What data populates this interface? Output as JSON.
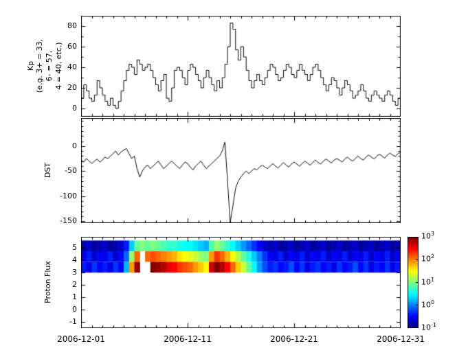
{
  "axis": {
    "x_tick_labels": [
      "2006-12-01",
      "2006-12-11",
      "2006-12-21",
      "2006-12-31"
    ],
    "x_tick_days": [
      1,
      11,
      21,
      31
    ],
    "xlim_days": [
      1,
      31
    ]
  },
  "colorbar": {
    "tick_labels": [
      {
        "base": "10",
        "exp": "3"
      },
      {
        "base": "10",
        "exp": "2"
      },
      {
        "base": "10",
        "exp": "1"
      },
      {
        "base": "10",
        "exp": "0"
      },
      {
        "base": "10",
        "exp": "-1"
      }
    ]
  },
  "chart_data": [
    {
      "type": "line",
      "style": "step",
      "ylabel": "Kp\n(e.g. 3+ = 33,\n6- = 57,\n4 = 40, etc.)",
      "ylim": [
        -8,
        90
      ],
      "yticks": [
        0,
        20,
        40,
        60,
        80
      ],
      "yminor": 10,
      "x_start_day": 1,
      "x_step_days": 0.25,
      "values": [
        10,
        23,
        17,
        10,
        7,
        13,
        27,
        20,
        13,
        7,
        3,
        10,
        3,
        0,
        7,
        17,
        27,
        37,
        43,
        40,
        33,
        47,
        43,
        37,
        40,
        43,
        37,
        30,
        23,
        17,
        27,
        33,
        10,
        7,
        20,
        37,
        40,
        37,
        30,
        23,
        37,
        43,
        40,
        33,
        27,
        20,
        30,
        37,
        30,
        23,
        17,
        27,
        20,
        30,
        43,
        60,
        83,
        77,
        57,
        47,
        60,
        50,
        37,
        27,
        20,
        27,
        33,
        27,
        23,
        30,
        37,
        43,
        40,
        33,
        27,
        30,
        37,
        43,
        40,
        33,
        30,
        37,
        43,
        37,
        33,
        27,
        33,
        40,
        43,
        37,
        30,
        23,
        17,
        23,
        30,
        27,
        20,
        13,
        20,
        27,
        23,
        17,
        10,
        13,
        17,
        23,
        17,
        10,
        7,
        13,
        17,
        13,
        10,
        7,
        13,
        17,
        13,
        7,
        3,
        10,
        13,
        17,
        10,
        7
      ]
    },
    {
      "type": "line",
      "style": "line",
      "ylabel": "DST",
      "ylim": [
        -154,
        56
      ],
      "yticks": [
        0,
        -50,
        -100,
        -150
      ],
      "yminor": 10,
      "x_start_day": 1,
      "x_step_days": 0.25,
      "values": [
        -28,
        -32,
        -25,
        -30,
        -35,
        -30,
        -26,
        -32,
        -28,
        -22,
        -25,
        -20,
        -15,
        -10,
        -18,
        -12,
        -8,
        -5,
        -15,
        -25,
        -20,
        -45,
        -62,
        -50,
        -42,
        -38,
        -45,
        -40,
        -35,
        -30,
        -38,
        -45,
        -40,
        -35,
        -30,
        -35,
        -40,
        -45,
        -38,
        -32,
        -35,
        -42,
        -48,
        -40,
        -35,
        -30,
        -38,
        -45,
        -40,
        -35,
        -30,
        -25,
        -20,
        -10,
        8,
        -70,
        -153,
        -120,
        -85,
        -70,
        -62,
        -55,
        -50,
        -55,
        -50,
        -45,
        -48,
        -42,
        -38,
        -42,
        -45,
        -40,
        -35,
        -40,
        -44,
        -38,
        -33,
        -38,
        -42,
        -36,
        -32,
        -36,
        -40,
        -35,
        -30,
        -34,
        -38,
        -33,
        -28,
        -33,
        -36,
        -30,
        -26,
        -30,
        -34,
        -28,
        -25,
        -28,
        -32,
        -26,
        -22,
        -27,
        -30,
        -25,
        -20,
        -25,
        -28,
        -22,
        -18,
        -22,
        -26,
        -20,
        -16,
        -20,
        -24,
        -18,
        -14,
        -18,
        -21,
        -15,
        -12,
        -16,
        -19,
        -13
      ]
    },
    {
      "type": "heatmap",
      "ylabel": "Proton Flux",
      "ylim": [
        -1.5,
        5.9
      ],
      "yticks": [
        -1,
        0,
        1,
        2,
        3,
        4,
        5
      ],
      "x_start_day": 1,
      "x_step_days": 0.5,
      "color_scale": {
        "type": "log-jet",
        "min_exp": -1,
        "max_exp": 3
      },
      "rows": [
        {
          "y_range": [
            4.73,
            5.6
          ],
          "values": [
            -0.8,
            -0.7,
            -0.9,
            -0.8,
            -0.7,
            -0.9,
            -0.8,
            -0.7,
            -0.4,
            0.3,
            0.9,
            1.0,
            0.9,
            1.0,
            0.9,
            0.8,
            0.7,
            0.7,
            0.6,
            0.5,
            0.5,
            0.4,
            0.3,
            0.2,
            0.8,
            1.1,
            0.9,
            0.7,
            0.5,
            0.3,
            0.1,
            -0.1,
            -0.3,
            -0.5,
            -0.7,
            -0.8,
            -0.7,
            -0.9,
            -0.8,
            -0.7,
            -0.9,
            -0.8,
            -0.7,
            -0.9,
            -0.8,
            -0.7,
            -0.9,
            -0.8,
            -0.7,
            -0.9,
            -0.8,
            -0.7,
            -0.9,
            -0.8,
            -0.7,
            -0.9,
            -0.8,
            -0.7,
            -0.9,
            -0.8
          ]
        },
        {
          "y_range": [
            3.87,
            4.73
          ],
          "values": [
            -0.6,
            -0.4,
            -0.7,
            -0.5,
            -0.6,
            -0.4,
            -0.7,
            -0.5,
            -0.1,
            1.1,
            2.1,
            null,
            2.1,
            2.2,
            2.1,
            2.0,
            1.9,
            1.8,
            1.6,
            1.5,
            1.4,
            1.3,
            1.1,
            1.0,
            1.9,
            2.3,
            2.1,
            1.8,
            1.5,
            1.2,
            0.9,
            0.6,
            0.3,
            0.0,
            -0.3,
            -0.5,
            -0.6,
            -0.4,
            -0.7,
            -0.5,
            -0.6,
            -0.4,
            -0.7,
            -0.5,
            -0.6,
            -0.4,
            -0.7,
            -0.5,
            -0.6,
            -0.4,
            -0.7,
            -0.5,
            -0.6,
            -0.4,
            -0.7,
            -0.5,
            -0.6,
            -0.4,
            -0.7,
            -0.5
          ]
        },
        {
          "y_range": [
            3.0,
            3.87
          ],
          "values": [
            -0.4,
            -0.6,
            -0.3,
            -0.5,
            -0.4,
            -0.6,
            -0.3,
            -0.5,
            0.2,
            1.9,
            2.9,
            null,
            null,
            3.0,
            2.9,
            2.8,
            2.6,
            2.5,
            2.3,
            2.2,
            2.1,
            1.9,
            1.7,
            1.5,
            2.7,
            3.0,
            2.8,
            2.5,
            2.1,
            1.7,
            1.3,
            0.9,
            0.5,
            0.1,
            -0.2,
            -0.4,
            -0.3,
            -0.5,
            -0.4,
            -0.2,
            -0.5,
            -0.3,
            -0.6,
            -0.4,
            -0.3,
            -0.5,
            -0.4,
            -0.6,
            -0.3,
            -0.5,
            -0.4,
            -0.2,
            -0.5,
            -0.3,
            -0.6,
            -0.4,
            -0.5,
            -0.3,
            -0.6,
            -0.4
          ]
        }
      ]
    }
  ]
}
